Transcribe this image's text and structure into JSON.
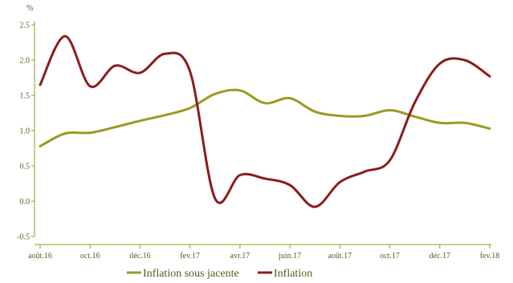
{
  "chart_data": {
    "type": "line",
    "unit": "%",
    "ylim": [
      -0.5,
      2.5
    ],
    "y_ticks": [
      "2.5",
      "2.0",
      "1.5",
      "1.0",
      "0.5",
      "0.0",
      "-0.5"
    ],
    "x_ticks": [
      "août.16",
      "oct.16",
      "déc.16",
      "fev.17",
      "avr.17",
      "juin.17",
      "août.17",
      "oct.17",
      "déc.17",
      "fev.18"
    ],
    "grid": false,
    "legend_position": "bottom",
    "x": [
      "2016-08",
      "2016-09",
      "2016-10",
      "2016-11",
      "2016-12",
      "2017-01",
      "2017-02",
      "2017-03",
      "2017-04",
      "2017-05",
      "2017-06",
      "2017-07",
      "2017-08",
      "2017-09",
      "2017-10",
      "2017-11",
      "2017-12",
      "2018-01",
      "2018-02"
    ],
    "series": [
      {
        "name": "Inflation sous jacente",
        "color": "#9a9a22",
        "values": [
          0.78,
          0.96,
          0.97,
          1.05,
          1.14,
          1.22,
          1.32,
          1.52,
          1.57,
          1.39,
          1.46,
          1.27,
          1.21,
          1.21,
          1.29,
          1.2,
          1.11,
          1.11,
          1.03
        ]
      },
      {
        "name": "Inflation",
        "color": "#8b1c1c",
        "values": [
          1.65,
          2.34,
          1.63,
          1.92,
          1.82,
          2.09,
          1.84,
          0.04,
          0.37,
          0.32,
          0.23,
          -0.08,
          0.27,
          0.42,
          0.58,
          1.4,
          1.95,
          2.0,
          1.77
        ]
      }
    ]
  }
}
